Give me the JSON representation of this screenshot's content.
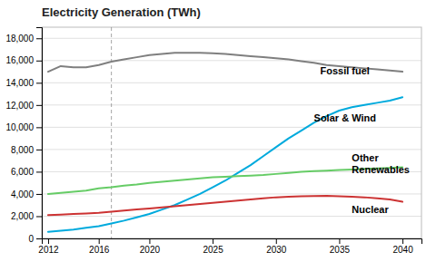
{
  "chart_data": {
    "type": "line",
    "title": "Electricity Generation  (TWh)",
    "x": [
      2012,
      2013,
      2014,
      2015,
      2016,
      2017,
      2018,
      2019,
      2020,
      2021,
      2022,
      2023,
      2024,
      2025,
      2026,
      2027,
      2028,
      2029,
      2030,
      2031,
      2032,
      2033,
      2034,
      2035,
      2036,
      2037,
      2038,
      2039,
      2040
    ],
    "series": [
      {
        "color": "#7f7f7f",
        "values": [
          15000,
          15500,
          15400,
          15400,
          15600,
          15900,
          16100,
          16300,
          16500,
          16600,
          16700,
          16700,
          16700,
          16650,
          16600,
          16500,
          16400,
          16300,
          16200,
          16100,
          15950,
          15800,
          15600,
          15500,
          15400,
          15300,
          15200,
          15100,
          15000
        ]
      },
      {
        "color": "#00AADD",
        "values": [
          600,
          700,
          800,
          950,
          1100,
          1350,
          1600,
          1900,
          2200,
          2600,
          3000,
          3500,
          4000,
          4600,
          5200,
          5900,
          6600,
          7400,
          8200,
          9000,
          9700,
          10400,
          11000,
          11500,
          11800,
          12000,
          12200,
          12400,
          12700
        ]
      },
      {
        "color": "#66CC66",
        "values": [
          4000,
          4100,
          4200,
          4300,
          4500,
          4600,
          4750,
          4850,
          5000,
          5100,
          5200,
          5300,
          5400,
          5500,
          5550,
          5600,
          5650,
          5700,
          5800,
          5900,
          6000,
          6050,
          6100,
          6150,
          6200,
          6250,
          6300,
          6350,
          6400
        ]
      },
      {
        "color": "#CC3333",
        "values": [
          2100,
          2150,
          2200,
          2250,
          2300,
          2400,
          2500,
          2600,
          2700,
          2800,
          2900,
          3000,
          3100,
          3200,
          3300,
          3400,
          3500,
          3600,
          3700,
          3750,
          3800,
          3820,
          3830,
          3800,
          3750,
          3700,
          3600,
          3500,
          3300
        ]
      }
    ],
    "vline": {
      "x": 2017,
      "line_style": "dashed"
    },
    "annotations": [
      {
        "text": "Fossil fuel",
        "x": 2033.5,
        "y": 15100
      },
      {
        "text": "Solar & Wind",
        "x": 2033.0,
        "y": 10800
      },
      {
        "text": "Other\nRenewables",
        "x": 2036.0,
        "y": 6700
      },
      {
        "text": "Nuclear",
        "x": 2036.0,
        "y": 2600
      }
    ],
    "xlim": [
      2011.5,
      2041.5
    ],
    "xticks": [
      2012,
      2016,
      2020,
      2025,
      2030,
      2035,
      2040
    ],
    "ylim": [
      0,
      19000
    ],
    "yticks": [
      0,
      {
        "value": 2000,
        "label": "2,000"
      },
      {
        "value": 4000,
        "label": "4,000"
      },
      {
        "value": 6000,
        "label": "6,000"
      },
      {
        "value": 8000,
        "label": "8,000"
      },
      {
        "value": 10000,
        "label": "10,000"
      },
      {
        "value": 12000,
        "label": "12,000"
      },
      {
        "value": 14000,
        "label": "14,000"
      },
      {
        "value": 16000,
        "label": "16,000"
      },
      {
        "value": 18000,
        "label": "18,000"
      }
    ],
    "grid": true
  }
}
